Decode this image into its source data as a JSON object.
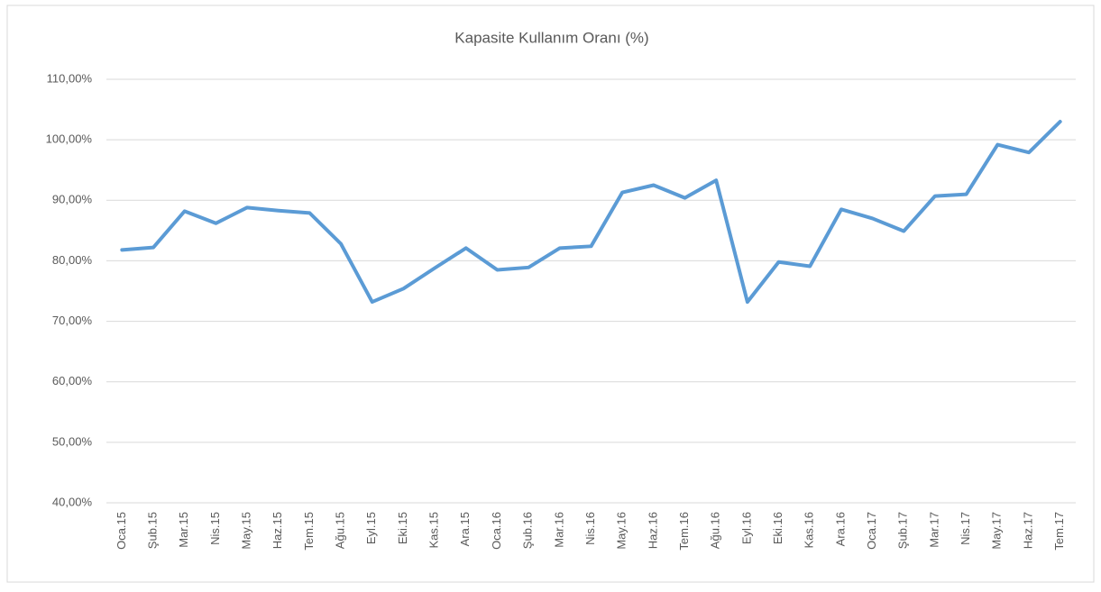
{
  "chart_data": {
    "type": "line",
    "title": "Kapasite Kullanım Oranı (%)",
    "categories": [
      "Oca.15",
      "Şub.15",
      "Mar.15",
      "Nis.15",
      "May.15",
      "Haz.15",
      "Tem.15",
      "Ağu.15",
      "Eyl.15",
      "Eki.15",
      "Kas.15",
      "Ara.15",
      "Oca.16",
      "Şub.16",
      "Mar.16",
      "Nis.16",
      "May.16",
      "Haz.16",
      "Tem.16",
      "Ağu.16",
      "Eyl.16",
      "Eki.16",
      "Kas.16",
      "Ara.16",
      "Oca.17",
      "Şub.17",
      "Mar.17",
      "Nis.17",
      "May.17",
      "Haz.17",
      "Tem.17"
    ],
    "values": [
      81.8,
      82.2,
      88.2,
      86.2,
      88.8,
      88.3,
      87.9,
      82.8,
      73.2,
      75.4,
      78.8,
      82.1,
      78.5,
      78.9,
      82.1,
      82.4,
      91.3,
      92.5,
      90.4,
      93.3,
      73.2,
      79.8,
      79.1,
      88.5,
      87.0,
      84.9,
      90.7,
      91.0,
      99.2,
      97.9,
      103.0
    ],
    "color": "#5b9bd5",
    "ylim": [
      40,
      110
    ],
    "yticks": [
      {
        "value": 40,
        "label": "40,00%"
      },
      {
        "value": 50,
        "label": "50,00%"
      },
      {
        "value": 60,
        "label": "60,00%"
      },
      {
        "value": 70,
        "label": "70,00%"
      },
      {
        "value": 80,
        "label": "80,00%"
      },
      {
        "value": 90,
        "label": "90,00%"
      },
      {
        "value": 100,
        "label": "100,00%"
      },
      {
        "value": 110,
        "label": "110,00%"
      }
    ],
    "grid": true
  }
}
